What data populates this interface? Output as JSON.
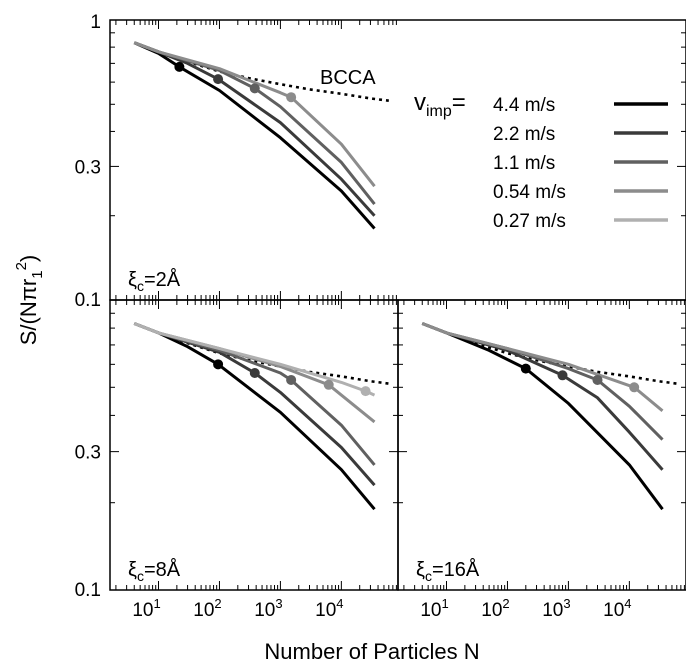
{
  "chart_data": {
    "type": "line",
    "xlabel": "Number of Particles N",
    "ylabel": "S/(Nπr",
    "ylabel_sub": "1",
    "ylabel_sup": "2",
    "ylabel_tail": ")",
    "xscale": "log",
    "yscale": "log",
    "xlim": [
      1.6,
      85000
    ],
    "ylim": [
      0.1,
      1.0
    ],
    "x_ticks": [
      10,
      100,
      1000,
      10000
    ],
    "x_tick_labels": [
      {
        "base": "10",
        "exp": "1"
      },
      {
        "base": "10",
        "exp": "2"
      },
      {
        "base": "10",
        "exp": "3"
      },
      {
        "base": "10",
        "exp": "4"
      }
    ],
    "y_ticks": [
      {
        "value": 1.0,
        "label": "1",
        "panels": [
          "top"
        ]
      },
      {
        "value": 0.3,
        "label": "0.3",
        "panels": [
          "top",
          "bottom"
        ]
      },
      {
        "value": 0.1,
        "label": "0.1",
        "panels": [
          "top",
          "bottom"
        ]
      }
    ],
    "legend": {
      "prefix_main": "v",
      "prefix_sub": "imp",
      "prefix_suffix": "=",
      "entries": [
        {
          "label": "4.4 m/s",
          "color": "#000000"
        },
        {
          "label": "2.2 m/s",
          "color": "#3a3a3a"
        },
        {
          "label": "1.1 m/s",
          "color": "#606060"
        },
        {
          "label": "0.54 m/s",
          "color": "#8c8c8c"
        },
        {
          "label": "0.27 m/s",
          "color": "#b0b0b0"
        }
      ]
    },
    "bcca": {
      "label": "BCCA",
      "x": [
        4,
        10,
        30,
        100,
        300,
        1000,
        3000,
        10000,
        30000,
        60000
      ],
      "y": [
        0.83,
        0.77,
        0.71,
        0.655,
        0.62,
        0.59,
        0.565,
        0.545,
        0.525,
        0.515
      ]
    },
    "panels": [
      {
        "id": "top",
        "label_main": "ξ",
        "label_sub": "c",
        "label_tail": "=2Å",
        "series": [
          {
            "name": "4.4 m/s",
            "color": "#000000",
            "x": [
              4,
              10,
              22,
              100,
              1000,
              10000,
              35000
            ],
            "y": [
              0.83,
              0.76,
              0.68,
              0.56,
              0.38,
              0.245,
              0.18
            ],
            "marker": [
              22,
              0.68
            ]
          },
          {
            "name": "2.2 m/s",
            "color": "#3a3a3a",
            "x": [
              4,
              10,
              30,
              95,
              1000,
              10000,
              35000
            ],
            "y": [
              0.83,
              0.77,
              0.7,
              0.615,
              0.43,
              0.27,
              0.2
            ],
            "marker": [
              95,
              0.615
            ]
          },
          {
            "name": "1.1 m/s",
            "color": "#606060",
            "x": [
              4,
              10,
              100,
              380,
              1000,
              10000,
              35000
            ],
            "y": [
              0.83,
              0.77,
              0.66,
              0.57,
              0.49,
              0.31,
              0.22
            ],
            "marker": [
              380,
              0.57
            ]
          },
          {
            "name": "0.54 m/s",
            "color": "#8c8c8c",
            "x": [
              4,
              10,
              100,
              1000,
              1500,
              10000,
              35000
            ],
            "y": [
              0.83,
              0.77,
              0.67,
              0.55,
              0.53,
              0.36,
              0.255
            ],
            "marker": [
              1500,
              0.53
            ]
          }
        ]
      },
      {
        "id": "bottom-left",
        "label_main": "ξ",
        "label_sub": "c",
        "label_tail": "=8Å",
        "series": [
          {
            "name": "4.4 m/s",
            "color": "#000000",
            "x": [
              4,
              10,
              30,
              95,
              1000,
              10000,
              35000
            ],
            "y": [
              0.83,
              0.77,
              0.69,
              0.6,
              0.41,
              0.26,
              0.19
            ],
            "marker": [
              95,
              0.6
            ]
          },
          {
            "name": "2.2 m/s",
            "color": "#3a3a3a",
            "x": [
              4,
              10,
              100,
              380,
              1000,
              10000,
              35000
            ],
            "y": [
              0.83,
              0.77,
              0.66,
              0.56,
              0.48,
              0.31,
              0.23
            ],
            "marker": [
              380,
              0.56
            ]
          },
          {
            "name": "1.1 m/s",
            "color": "#606060",
            "x": [
              4,
              10,
              100,
              1000,
              1500,
              10000,
              35000
            ],
            "y": [
              0.83,
              0.77,
              0.67,
              0.56,
              0.53,
              0.37,
              0.27
            ],
            "marker": [
              1500,
              0.53
            ]
          },
          {
            "name": "0.54 m/s",
            "color": "#8c8c8c",
            "x": [
              4,
              10,
              100,
              1000,
              6200,
              35000
            ],
            "y": [
              0.83,
              0.77,
              0.68,
              0.59,
              0.51,
              0.38
            ],
            "marker": [
              6200,
              0.51
            ]
          },
          {
            "name": "0.27 m/s",
            "color": "#b0b0b0",
            "x": [
              4,
              10,
              100,
              1000,
              10000,
              25000,
              35000
            ],
            "y": [
              0.83,
              0.77,
              0.68,
              0.6,
              0.52,
              0.485,
              0.47
            ],
            "marker": [
              25000,
              0.485
            ]
          }
        ]
      },
      {
        "id": "bottom-right",
        "label_main": "ξ",
        "label_sub": "c",
        "label_tail": "=16Å",
        "series": [
          {
            "name": "4.4 m/s",
            "color": "#000000",
            "x": [
              4,
              10,
              50,
              200,
              1000,
              10000,
              35000
            ],
            "y": [
              0.83,
              0.77,
              0.67,
              0.58,
              0.44,
              0.27,
              0.19
            ],
            "marker": [
              200,
              0.58
            ]
          },
          {
            "name": "2.2 m/s",
            "color": "#3a3a3a",
            "x": [
              4,
              10,
              100,
              800,
              3000,
              10000,
              35000
            ],
            "y": [
              0.83,
              0.77,
              0.67,
              0.55,
              0.46,
              0.35,
              0.26
            ],
            "marker": [
              800,
              0.55
            ]
          },
          {
            "name": "1.1 m/s",
            "color": "#606060",
            "x": [
              4,
              10,
              100,
              1000,
              3000,
              10000,
              35000
            ],
            "y": [
              0.83,
              0.77,
              0.68,
              0.58,
              0.53,
              0.43,
              0.33
            ],
            "marker": [
              3000,
              0.53
            ]
          },
          {
            "name": "0.54 m/s",
            "color": "#8c8c8c",
            "x": [
              4,
              10,
              100,
              1000,
              12000,
              35000
            ],
            "y": [
              0.83,
              0.77,
              0.68,
              0.6,
              0.5,
              0.415
            ],
            "marker": [
              12000,
              0.5
            ]
          }
        ]
      }
    ]
  }
}
